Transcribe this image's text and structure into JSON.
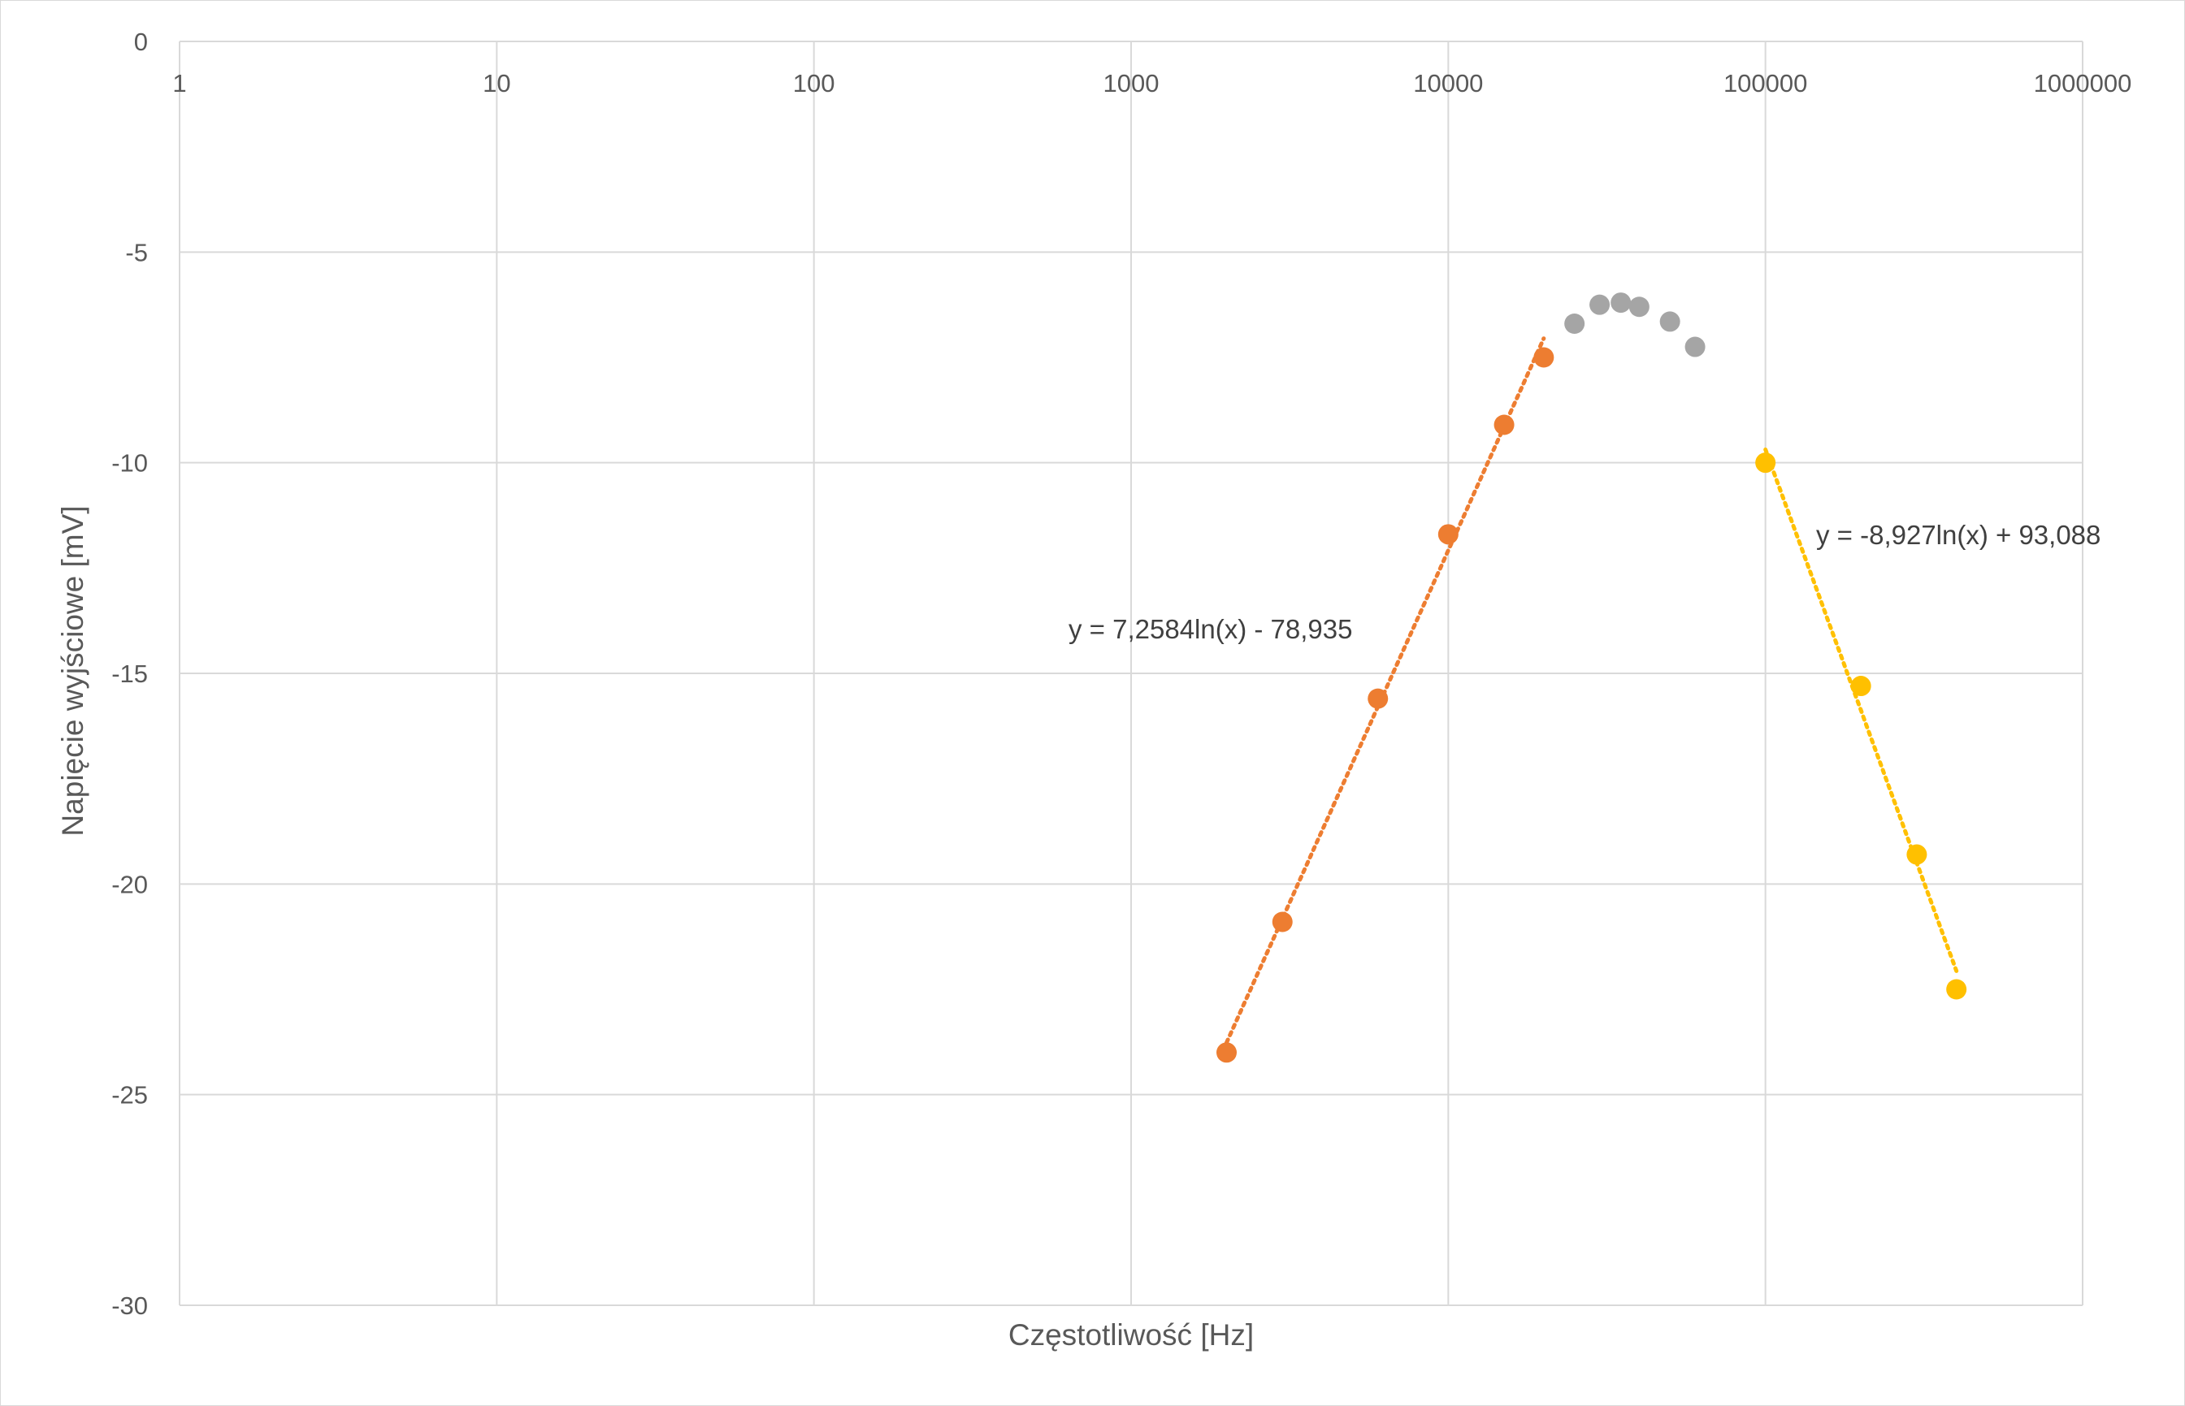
{
  "chart_data": {
    "type": "scatter",
    "title": "",
    "xlabel": "Częstotliwość [Hz]",
    "ylabel": "Napięcie wyjściowe [mV]",
    "x_scale": "log",
    "xlim": [
      1,
      1000000
    ],
    "ylim": [
      -30,
      0
    ],
    "x_axis_labels_position": "top",
    "grid": true,
    "legend": "none",
    "x_ticks": [
      "1",
      "10",
      "100",
      "1000",
      "10000",
      "100000",
      "1000000"
    ],
    "y_ticks": [
      "0",
      "-5",
      "-10",
      "-15",
      "-20",
      "-25",
      "-30"
    ],
    "series": [
      {
        "color": "#ED7D31",
        "points": [
          {
            "x": 2000,
            "y": -24.0
          },
          {
            "x": 3000,
            "y": -20.9
          },
          {
            "x": 6000,
            "y": -15.6
          },
          {
            "x": 10000,
            "y": -11.7
          },
          {
            "x": 15000,
            "y": -9.1
          },
          {
            "x": 20000,
            "y": -7.5
          }
        ],
        "trendline": {
          "type": "logarithmic",
          "a": 7.2584,
          "b": -78.935,
          "x_range": [
            2000,
            20000
          ],
          "equation": "y = 7,2584ln(x) - 78,935"
        }
      },
      {
        "color": "#A5A5A5",
        "points": [
          {
            "x": 25000,
            "y": -6.7
          },
          {
            "x": 30000,
            "y": -6.25
          },
          {
            "x": 35000,
            "y": -6.2
          },
          {
            "x": 40000,
            "y": -6.3
          },
          {
            "x": 50000,
            "y": -6.65
          },
          {
            "x": 60000,
            "y": -7.25
          }
        ]
      },
      {
        "color": "#FFC000",
        "points": [
          {
            "x": 100000,
            "y": -10.0
          },
          {
            "x": 200000,
            "y": -15.3
          },
          {
            "x": 300000,
            "y": -19.3
          },
          {
            "x": 400000,
            "y": -22.5
          }
        ],
        "trendline": {
          "type": "logarithmic",
          "a": -8.927,
          "b": 93.088,
          "x_range": [
            100000,
            400000
          ],
          "equation": "y = -8,927ln(x) + 93,088"
        }
      }
    ],
    "colors": {
      "grid": "#d9d9d9",
      "text": "#595959"
    }
  }
}
